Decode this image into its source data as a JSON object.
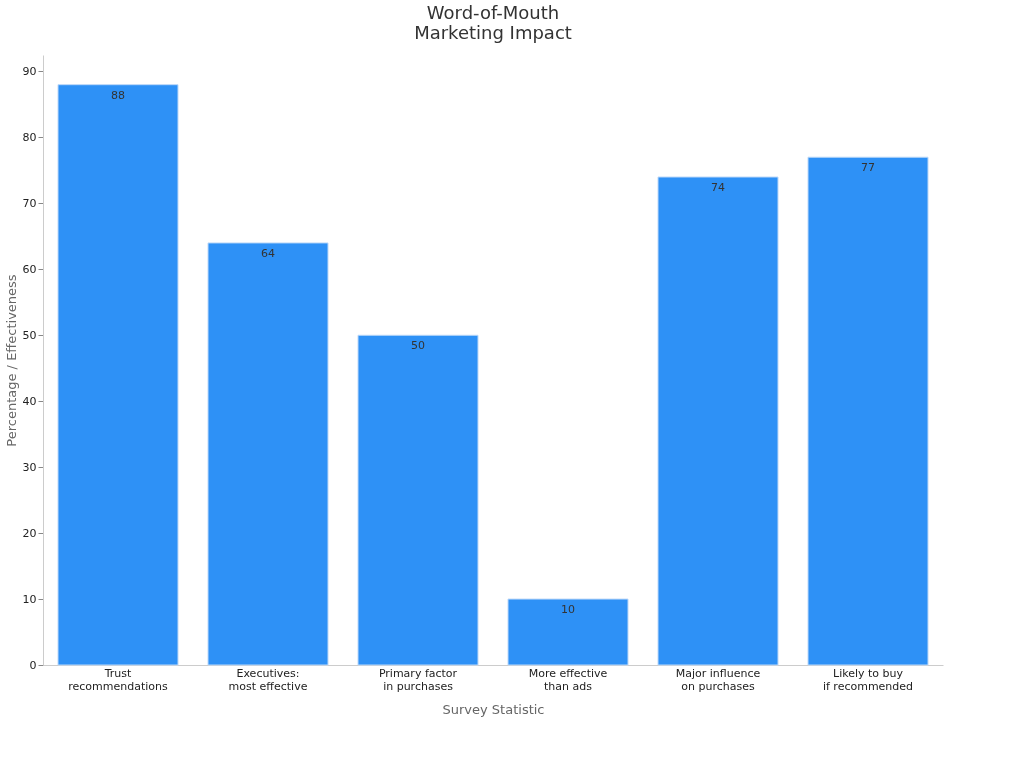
{
  "chart_data": {
    "type": "bar",
    "title": "Word-of-Mouth\nMarketing Impact",
    "xlabel": "Survey Statistic",
    "ylabel": "Percentage / Effectiveness",
    "categories": [
      "Trust\nrecommendations",
      "Executives:\nmost effective",
      "Primary factor\nin purchases",
      "More effective\nthan ads",
      "Major influence\non purchases",
      "Likely to buy\nif recommended"
    ],
    "values": [
      88,
      64,
      50,
      10,
      74,
      77
    ],
    "color": "#2e91f6",
    "ylim": [
      0,
      92.5
    ],
    "yticks": [
      0,
      10,
      20,
      30,
      40,
      50,
      60,
      70,
      80,
      90
    ],
    "grid": false,
    "data_labels": true
  }
}
